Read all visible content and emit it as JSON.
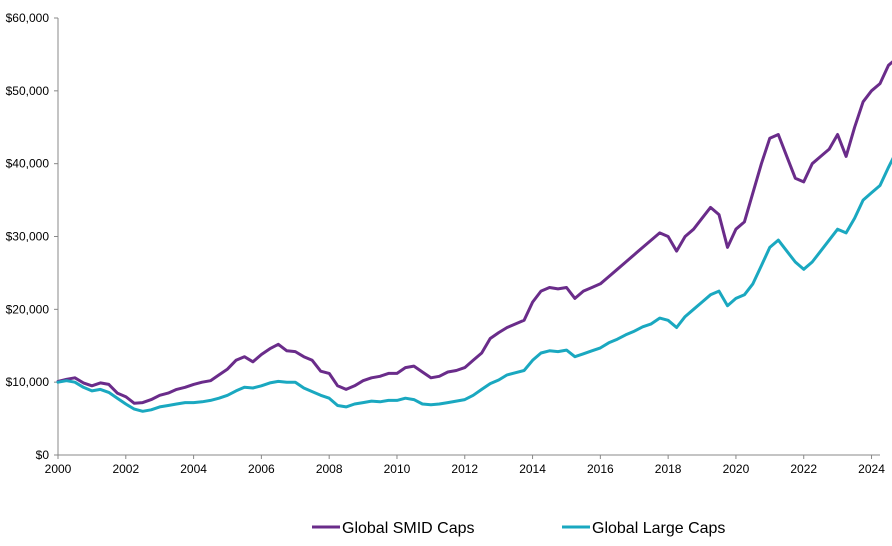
{
  "chart_data": {
    "type": "line",
    "title": "",
    "xlabel": "",
    "ylabel": "",
    "xlim": [
      2000,
      2024.25
    ],
    "ylim": [
      0,
      60000
    ],
    "grid": false,
    "legend_position": "bottom",
    "x_ticks": [
      "2000",
      "2002",
      "2004",
      "2006",
      "2008",
      "2010",
      "2012",
      "2014",
      "2016",
      "2018",
      "2020",
      "2022",
      "2024"
    ],
    "y_ticks": [
      "$0",
      "$10,000",
      "$20,000",
      "$30,000",
      "$40,000",
      "$50,000",
      "$60,000"
    ],
    "series": [
      {
        "name": "Global SMID Caps",
        "color": "#6a2c8a",
        "points": [
          [
            2000.0,
            10100
          ],
          [
            2000.25,
            10400
          ],
          [
            2000.5,
            10600
          ],
          [
            2000.75,
            9900
          ],
          [
            2001.0,
            9500
          ],
          [
            2001.25,
            9900
          ],
          [
            2001.5,
            9700
          ],
          [
            2001.75,
            8500
          ],
          [
            2002.0,
            8000
          ],
          [
            2002.25,
            7100
          ],
          [
            2002.5,
            7200
          ],
          [
            2002.75,
            7600
          ],
          [
            2003.0,
            8200
          ],
          [
            2003.25,
            8500
          ],
          [
            2003.5,
            9000
          ],
          [
            2003.75,
            9300
          ],
          [
            2004.0,
            9700
          ],
          [
            2004.25,
            10000
          ],
          [
            2004.5,
            10200
          ],
          [
            2004.75,
            11000
          ],
          [
            2005.0,
            11800
          ],
          [
            2005.25,
            13000
          ],
          [
            2005.5,
            13500
          ],
          [
            2005.75,
            12800
          ],
          [
            2006.0,
            13800
          ],
          [
            2006.25,
            14600
          ],
          [
            2006.5,
            15200
          ],
          [
            2006.75,
            14300
          ],
          [
            2007.0,
            14200
          ],
          [
            2007.25,
            13500
          ],
          [
            2007.5,
            13000
          ],
          [
            2007.75,
            11500
          ],
          [
            2008.0,
            11200
          ],
          [
            2008.25,
            9500
          ],
          [
            2008.5,
            9000
          ],
          [
            2008.75,
            9500
          ],
          [
            2009.0,
            10200
          ],
          [
            2009.25,
            10600
          ],
          [
            2009.5,
            10800
          ],
          [
            2009.75,
            11200
          ],
          [
            2010.0,
            11200
          ],
          [
            2010.25,
            12000
          ],
          [
            2010.5,
            12200
          ],
          [
            2010.75,
            11400
          ],
          [
            2011.0,
            10600
          ],
          [
            2011.25,
            10800
          ],
          [
            2011.5,
            11400
          ],
          [
            2011.75,
            11600
          ],
          [
            2012.0,
            12000
          ],
          [
            2012.25,
            13000
          ],
          [
            2012.5,
            14000
          ],
          [
            2012.75,
            16000
          ],
          [
            2013.0,
            16800
          ],
          [
            2013.25,
            17500
          ],
          [
            2013.5,
            18000
          ],
          [
            2013.75,
            18500
          ],
          [
            2014.0,
            21000
          ],
          [
            2014.25,
            22500
          ],
          [
            2014.5,
            23000
          ],
          [
            2014.75,
            22800
          ],
          [
            2015.0,
            23000
          ],
          [
            2015.25,
            21500
          ],
          [
            2015.5,
            22500
          ],
          [
            2015.75,
            23000
          ],
          [
            2016.0,
            23500
          ],
          [
            2016.25,
            24500
          ],
          [
            2016.5,
            25500
          ],
          [
            2016.75,
            26500
          ],
          [
            2017.0,
            27500
          ],
          [
            2017.25,
            28500
          ],
          [
            2017.5,
            29500
          ],
          [
            2017.75,
            30500
          ],
          [
            2018.0,
            30000
          ],
          [
            2018.25,
            28000
          ],
          [
            2018.5,
            30000
          ],
          [
            2018.75,
            31000
          ],
          [
            2019.0,
            32500
          ],
          [
            2019.25,
            34000
          ],
          [
            2019.5,
            33000
          ],
          [
            2019.75,
            28500
          ],
          [
            2020.0,
            31000
          ],
          [
            2020.25,
            32000
          ],
          [
            2020.5,
            36000
          ],
          [
            2020.75,
            40000
          ],
          [
            2021.0,
            43500
          ],
          [
            2021.25,
            44000
          ],
          [
            2021.5,
            41000
          ],
          [
            2021.75,
            38000
          ],
          [
            2022.0,
            37500
          ],
          [
            2022.25,
            40000
          ],
          [
            2022.5,
            41000
          ],
          [
            2022.75,
            42000
          ],
          [
            2023.0,
            44000
          ],
          [
            2023.25,
            41000
          ],
          [
            2023.5,
            45000
          ],
          [
            2023.75,
            48500
          ],
          [
            2024.0,
            50000
          ],
          [
            2024.25,
            51000
          ],
          [
            2024.5,
            53500
          ],
          [
            2024.75,
            54500
          ],
          [
            2024.95,
            52000
          ]
        ]
      },
      {
        "name": "Global Large Caps",
        "color": "#1aa8c0",
        "points": [
          [
            2000.0,
            10000
          ],
          [
            2000.25,
            10200
          ],
          [
            2000.5,
            10000
          ],
          [
            2000.75,
            9300
          ],
          [
            2001.0,
            8800
          ],
          [
            2001.25,
            9000
          ],
          [
            2001.5,
            8600
          ],
          [
            2001.75,
            7800
          ],
          [
            2002.0,
            7000
          ],
          [
            2002.25,
            6300
          ],
          [
            2002.5,
            6000
          ],
          [
            2002.75,
            6200
          ],
          [
            2003.0,
            6600
          ],
          [
            2003.25,
            6800
          ],
          [
            2003.5,
            7000
          ],
          [
            2003.75,
            7200
          ],
          [
            2004.0,
            7200
          ],
          [
            2004.25,
            7300
          ],
          [
            2004.5,
            7500
          ],
          [
            2004.75,
            7800
          ],
          [
            2005.0,
            8200
          ],
          [
            2005.25,
            8800
          ],
          [
            2005.5,
            9300
          ],
          [
            2005.75,
            9200
          ],
          [
            2006.0,
            9500
          ],
          [
            2006.25,
            9900
          ],
          [
            2006.5,
            10100
          ],
          [
            2006.75,
            10000
          ],
          [
            2007.0,
            10000
          ],
          [
            2007.25,
            9200
          ],
          [
            2007.5,
            8700
          ],
          [
            2007.75,
            8200
          ],
          [
            2008.0,
            7800
          ],
          [
            2008.25,
            6800
          ],
          [
            2008.5,
            6600
          ],
          [
            2008.75,
            7000
          ],
          [
            2009.0,
            7200
          ],
          [
            2009.25,
            7400
          ],
          [
            2009.5,
            7300
          ],
          [
            2009.75,
            7500
          ],
          [
            2010.0,
            7500
          ],
          [
            2010.25,
            7800
          ],
          [
            2010.5,
            7600
          ],
          [
            2010.75,
            7000
          ],
          [
            2011.0,
            6900
          ],
          [
            2011.25,
            7000
          ],
          [
            2011.5,
            7200
          ],
          [
            2011.75,
            7400
          ],
          [
            2012.0,
            7600
          ],
          [
            2012.25,
            8200
          ],
          [
            2012.5,
            9000
          ],
          [
            2012.75,
            9800
          ],
          [
            2013.0,
            10300
          ],
          [
            2013.25,
            11000
          ],
          [
            2013.5,
            11300
          ],
          [
            2013.75,
            11600
          ],
          [
            2014.0,
            13000
          ],
          [
            2014.25,
            14000
          ],
          [
            2014.5,
            14300
          ],
          [
            2014.75,
            14200
          ],
          [
            2015.0,
            14400
          ],
          [
            2015.25,
            13500
          ],
          [
            2015.5,
            13900
          ],
          [
            2015.75,
            14300
          ],
          [
            2016.0,
            14700
          ],
          [
            2016.25,
            15400
          ],
          [
            2016.5,
            15900
          ],
          [
            2016.75,
            16500
          ],
          [
            2017.0,
            17000
          ],
          [
            2017.25,
            17600
          ],
          [
            2017.5,
            18000
          ],
          [
            2017.75,
            18800
          ],
          [
            2018.0,
            18500
          ],
          [
            2018.25,
            17500
          ],
          [
            2018.5,
            19000
          ],
          [
            2018.75,
            20000
          ],
          [
            2019.0,
            21000
          ],
          [
            2019.25,
            22000
          ],
          [
            2019.5,
            22500
          ],
          [
            2019.75,
            20500
          ],
          [
            2020.0,
            21500
          ],
          [
            2020.25,
            22000
          ],
          [
            2020.5,
            23500
          ],
          [
            2020.75,
            26000
          ],
          [
            2021.0,
            28500
          ],
          [
            2021.25,
            29500
          ],
          [
            2021.5,
            28000
          ],
          [
            2021.75,
            26500
          ],
          [
            2022.0,
            25500
          ],
          [
            2022.25,
            26500
          ],
          [
            2022.5,
            28000
          ],
          [
            2022.75,
            29500
          ],
          [
            2023.0,
            31000
          ],
          [
            2023.25,
            30500
          ],
          [
            2023.5,
            32500
          ],
          [
            2023.75,
            35000
          ],
          [
            2024.0,
            36000
          ],
          [
            2024.25,
            37000
          ],
          [
            2024.5,
            39500
          ],
          [
            2024.75,
            41800
          ],
          [
            2024.95,
            40000
          ]
        ]
      }
    ]
  }
}
